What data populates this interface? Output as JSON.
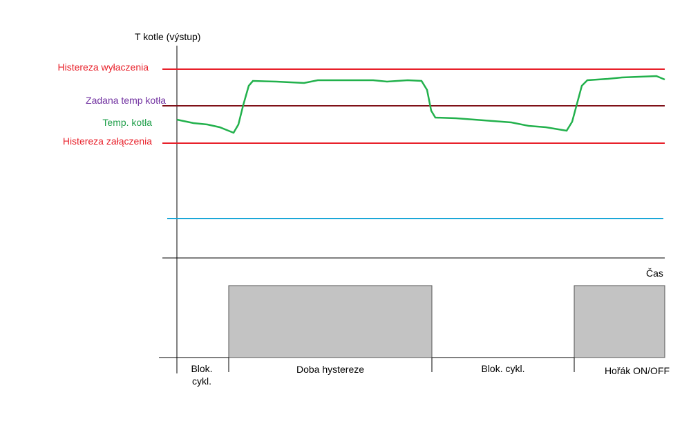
{
  "y_axis_label": "T kotle (výstup)",
  "x_axis_label": "Čas",
  "levels": {
    "off_hysteresis": "Histereza wyłaczenia",
    "setpoint": "Zadana temp kotła",
    "boiler_temp": "Temp. kotła",
    "on_hysteresis": "Histereza załączenia"
  },
  "phases": [
    {
      "lines": [
        "Blok.",
        "cykl."
      ]
    },
    {
      "lines": [
        "Doba hystereze"
      ]
    },
    {
      "lines": [
        "Blok. cykl."
      ]
    },
    {
      "lines": [
        "Hořák ON/OFF"
      ]
    }
  ]
}
